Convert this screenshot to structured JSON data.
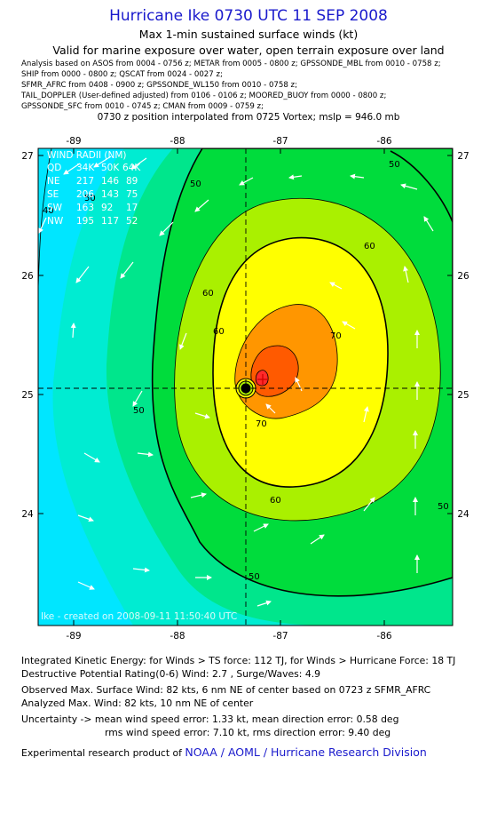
{
  "header": {
    "title": "Hurricane Ike 0730 UTC 11 SEP 2008",
    "subtitle1": "Max 1-min sustained surface winds (kt)",
    "subtitle2": "Valid for marine exposure over water, open terrain exposure over land",
    "analysis_lines": [
      "Analysis based on  ASOS from 0004 - 0756 z;  METAR from 0005 - 0800 z;  GPSSONDE_MBL from 0010 - 0758 z;",
      "SHIP from 0000 - 0800 z;  QSCAT from 0024 - 0027 z;",
      "SFMR_AFRC from 0408 - 0900 z;  GPSSONDE_WL150 from 0010 - 0758 z;",
      "TAIL_DOPPLER (User-defined adjusted) from 0106 - 0106 z;  MOORED_BUOY from 0000 - 0800 z;",
      "GPSSONDE_SFC from 0010 - 0745 z;  CMAN from 0009 - 0759 z;"
    ],
    "position_line": "0730 z position interpolated from 0725 Vortex; mslp = 946.0 mb"
  },
  "map": {
    "lon_ticks": [
      "-89",
      "-88",
      "-87",
      "-86"
    ],
    "lat_ticks": [
      "27",
      "26",
      "25",
      "24"
    ],
    "lon_range": [
      -89.4,
      -85.4
    ],
    "lat_range": [
      23.2,
      27.1
    ],
    "center": {
      "lon": -87.33,
      "lat": 25.05
    },
    "contour_labels": [
      "40",
      "50",
      "50",
      "50",
      "50",
      "50",
      "50",
      "60",
      "60",
      "60",
      "60",
      "70",
      "70"
    ],
    "watermark": "Ike - created on 2008-09-11  11:50:40 UTC",
    "fill_colors": [
      "#00e6ff",
      "#00ecd2",
      "#00e68c",
      "#00dc3c",
      "#aaf000",
      "#ffff00",
      "#ff9600",
      "#ff5a00",
      "#ff2a2a"
    ]
  },
  "wind_radii": {
    "title": "WIND RADII (NM)",
    "header": [
      "QD",
      "34K",
      "50K",
      "64K"
    ],
    "rows": [
      [
        "NE",
        "217",
        "146",
        "89"
      ],
      [
        "SE",
        "206",
        "143",
        "75"
      ],
      [
        "SW",
        "163",
        "92",
        "17"
      ],
      [
        "NW",
        "195",
        "117",
        "52"
      ]
    ]
  },
  "footer": {
    "ike": "Integrated Kinetic Energy:  for Winds > TS force: 112 TJ,  for Winds > Hurricane Force: 18 TJ",
    "dpr": "Destructive Potential Rating(0-6)   Wind: 2.7 , Surge/Waves: 4.9",
    "observed": "Observed Max. Surface Wind: 82 kts, 6 nm NE of center based on 0723 z SFMR_AFRC",
    "analyzed": "Analyzed Max. Wind: 82 kts, 10 nm NE of center",
    "uncert1": "Uncertainty -> mean wind speed error: 1.33 kt,   mean direction error: 0.58 deg",
    "uncert2": "rms wind speed error: 7.10 kt,   rms direction error: 9.40 deg",
    "product_prefix": "Experimental research product of",
    "product_org": "NOAA / AOML / Hurricane Research Division"
  }
}
